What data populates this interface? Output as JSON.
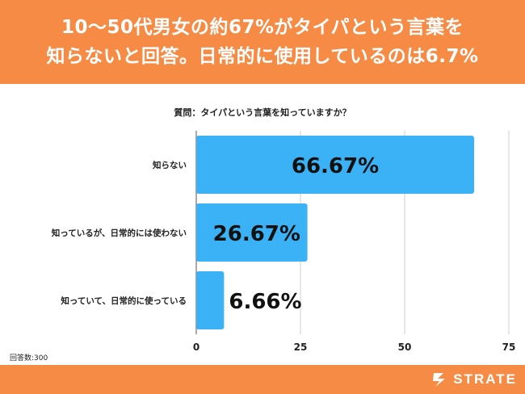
{
  "header": {
    "title_line1": "10〜50代男女の約67%がタイパという言葉を",
    "title_line2": "知らないと回答。日常的に使用しているのは6.7%"
  },
  "question": "質問：タイパという言葉を知っていますか？",
  "footnote": "回答数:300",
  "logo": {
    "text": "STRATE"
  },
  "colors": {
    "header_bg": "#f58b45",
    "bar": "#3bb2f5",
    "grid": "#cccccc"
  },
  "chart_data": {
    "type": "bar",
    "orientation": "horizontal",
    "categories": [
      "知らない",
      "知っているが、日常的には使わない",
      "知っていて、日常的に使っている"
    ],
    "values": [
      66.67,
      26.67,
      6.66
    ],
    "value_labels": [
      "66.67%",
      "26.67%",
      "6.66%"
    ],
    "x_ticks": [
      0,
      25,
      50,
      75
    ],
    "xlim": [
      0,
      75
    ],
    "grid": true,
    "title": "",
    "xlabel": "",
    "ylabel": ""
  }
}
